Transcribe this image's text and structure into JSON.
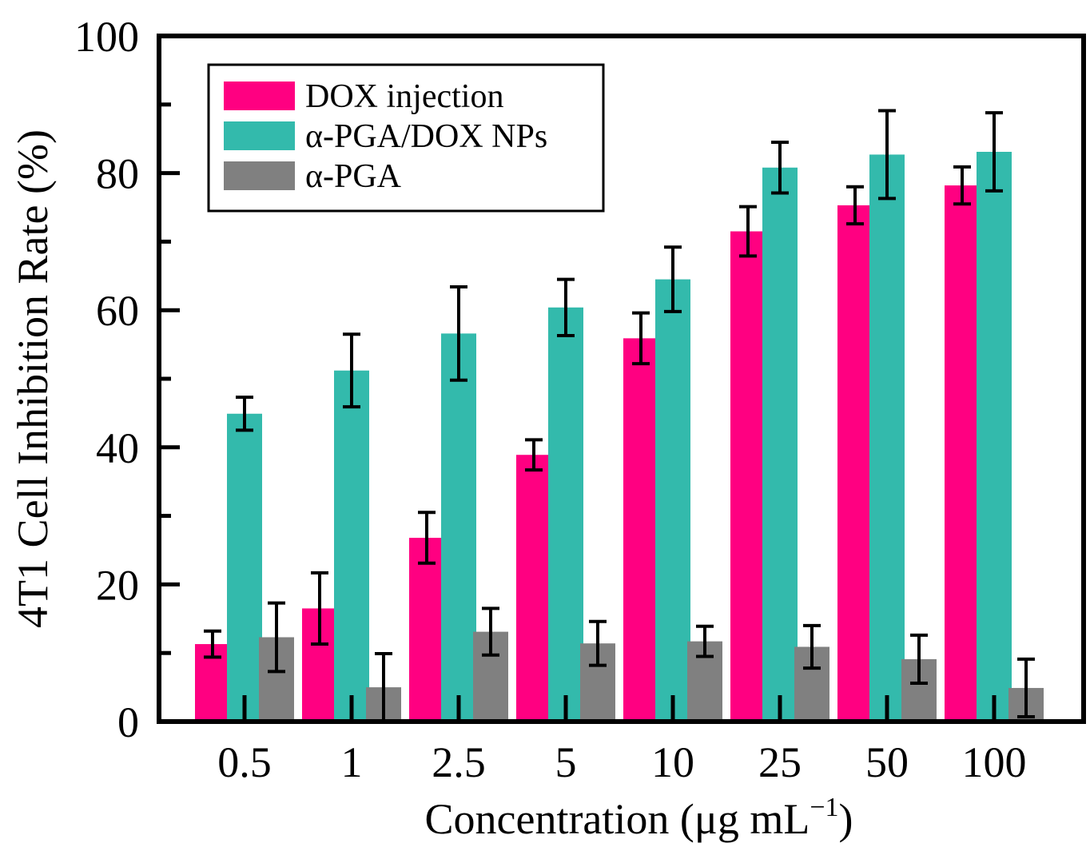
{
  "chart_data": {
    "type": "bar",
    "title": "",
    "xlabel": "Concentration (μg mL",
    "xlabel_sup": "−1",
    "xlabel_end": ")",
    "ylabel": "4T1 Cell Inhibition Rate (%)",
    "ylim": [
      0,
      100
    ],
    "yticks": [
      "0",
      "20",
      "40",
      "60",
      "80",
      "100"
    ],
    "categories": [
      "0.5",
      "1",
      "2.5",
      "5",
      "10",
      "25",
      "50",
      "100"
    ],
    "series": [
      {
        "name": "DOX injection",
        "color": "#ff0081",
        "values": [
          11.3,
          16.5,
          26.8,
          38.9,
          55.9,
          71.5,
          75.3,
          78.2
        ],
        "errors": [
          1.9,
          5.2,
          3.7,
          2.2,
          3.7,
          3.6,
          2.7,
          2.7
        ]
      },
      {
        "name": "α-PGA/DOX NPs",
        "color": "#33baac",
        "values": [
          44.9,
          51.2,
          56.6,
          60.4,
          64.5,
          80.8,
          82.7,
          83.1
        ],
        "errors": [
          2.4,
          5.3,
          6.8,
          4.1,
          4.7,
          3.7,
          6.4,
          5.7
        ]
      },
      {
        "name": "α-PGA",
        "color": "#808080",
        "values": [
          12.3,
          5.0,
          13.1,
          11.4,
          11.7,
          10.9,
          9.1,
          4.9
        ],
        "errors": [
          5.0,
          4.9,
          3.4,
          3.2,
          2.2,
          3.1,
          3.5,
          4.2
        ]
      }
    ],
    "legend_position": "top-left"
  }
}
